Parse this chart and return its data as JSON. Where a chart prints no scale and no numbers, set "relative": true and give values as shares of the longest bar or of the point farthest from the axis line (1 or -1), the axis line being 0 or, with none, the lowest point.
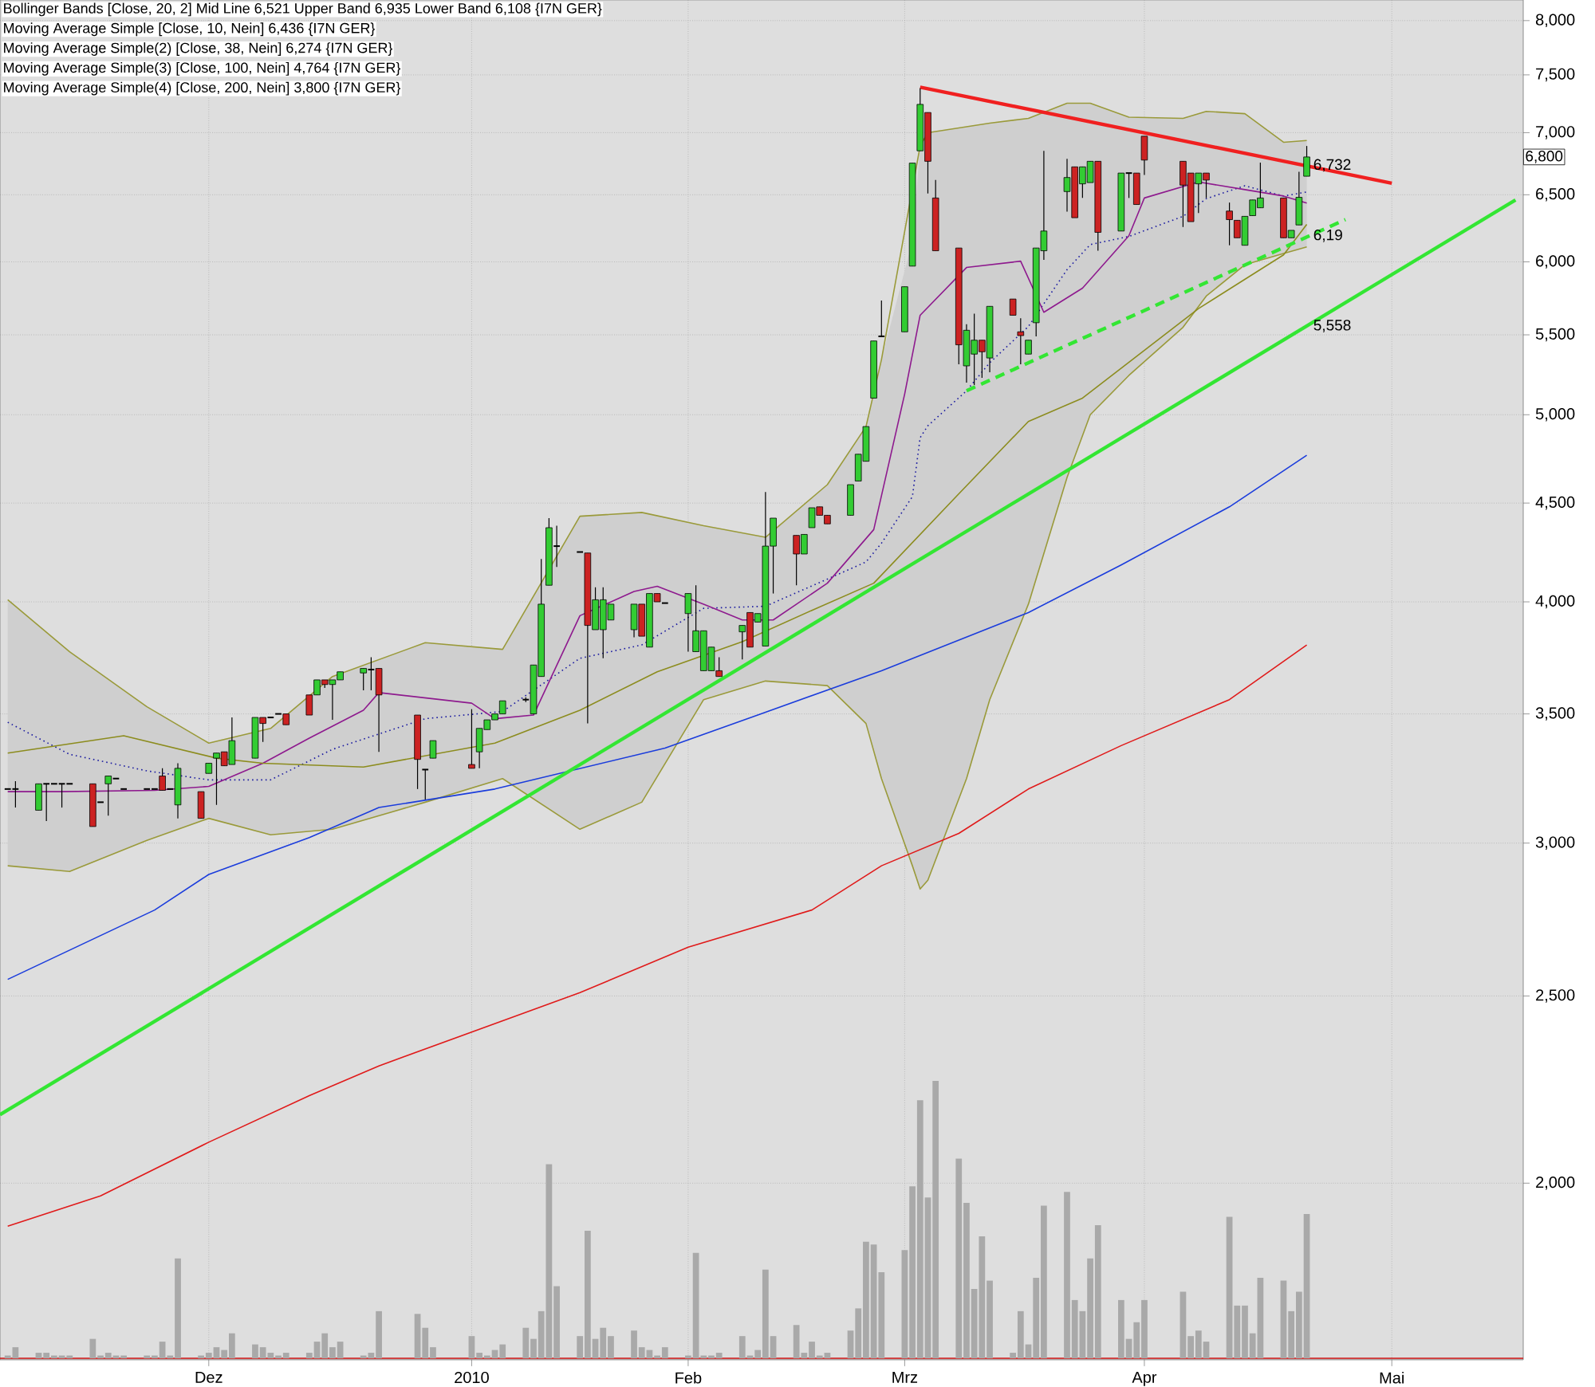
{
  "chart_data": [
    {
      "type": "candlestick",
      "x": [
        "2009-11-05",
        "2009-11-06",
        "2009-11-09",
        "2009-11-10",
        "2009-11-11",
        "2009-11-12",
        "2009-11-13",
        "2009-11-16",
        "2009-11-17",
        "2009-11-18",
        "2009-11-19",
        "2009-11-20",
        "2009-11-23",
        "2009-11-24",
        "2009-11-25",
        "2009-11-26",
        "2009-11-27",
        "2009-11-30",
        "2009-12-01",
        "2009-12-02",
        "2009-12-03",
        "2009-12-04",
        "2009-12-07",
        "2009-12-08",
        "2009-12-09",
        "2009-12-10",
        "2009-12-11",
        "2009-12-14",
        "2009-12-15",
        "2009-12-16",
        "2009-12-17",
        "2009-12-18",
        "2009-12-21",
        "2009-12-22",
        "2009-12-23",
        "2009-12-28",
        "2009-12-29",
        "2009-12-30",
        "2010-01-04",
        "2010-01-05",
        "2010-01-06",
        "2010-01-07",
        "2010-01-08",
        "2010-01-11",
        "2010-01-12",
        "2010-01-13",
        "2010-01-14",
        "2010-01-15",
        "2010-01-18",
        "2010-01-19",
        "2010-01-20",
        "2010-01-21",
        "2010-01-22",
        "2010-01-25",
        "2010-01-26",
        "2010-01-27",
        "2010-01-28",
        "2010-01-29",
        "2010-02-01",
        "2010-02-02",
        "2010-02-03",
        "2010-02-04",
        "2010-02-05",
        "2010-02-08",
        "2010-02-09",
        "2010-02-10",
        "2010-02-11",
        "2010-02-12",
        "2010-02-15",
        "2010-02-16",
        "2010-02-17",
        "2010-02-18",
        "2010-02-19",
        "2010-02-22",
        "2010-02-23",
        "2010-02-24",
        "2010-02-25",
        "2010-02-26",
        "2010-03-01",
        "2010-03-02",
        "2010-03-03",
        "2010-03-04",
        "2010-03-05",
        "2010-03-08",
        "2010-03-09",
        "2010-03-10",
        "2010-03-11",
        "2010-03-12",
        "2010-03-15",
        "2010-03-16",
        "2010-03-17",
        "2010-03-18",
        "2010-03-19",
        "2010-03-22",
        "2010-03-23",
        "2010-03-24",
        "2010-03-25",
        "2010-03-26",
        "2010-03-29",
        "2010-03-30",
        "2010-03-31",
        "2010-04-01",
        "2010-04-06",
        "2010-04-07",
        "2010-04-08",
        "2010-04-09",
        "2010-04-12",
        "2010-04-13",
        "2010-04-14",
        "2010-04-15",
        "2010-04-16",
        "2010-04-19",
        "2010-04-20",
        "2010-04-21",
        "2010-04-22"
      ],
      "ohlc": [
        [
          3200,
          3200,
          3200,
          3200
        ],
        [
          3200,
          3230,
          3130,
          3200
        ],
        [
          3120,
          3220,
          3120,
          3220
        ],
        [
          3220,
          3220,
          3080,
          3220
        ],
        [
          3220,
          3220,
          3220,
          3220
        ],
        [
          3220,
          3220,
          3130,
          3220
        ],
        [
          3220,
          3220,
          3220,
          3220
        ],
        [
          3220,
          3220,
          3060,
          3060
        ],
        [
          3150,
          3150,
          3150,
          3150
        ],
        [
          3220,
          3250,
          3100,
          3250
        ],
        [
          3240,
          3240,
          3240,
          3240
        ],
        [
          3200,
          3200,
          3200,
          3200
        ],
        [
          3200,
          3200,
          3200,
          3200
        ],
        [
          3200,
          3200,
          3200,
          3200
        ],
        [
          3250,
          3280,
          3195,
          3195
        ],
        [
          3200,
          3200,
          3200,
          3200
        ],
        [
          3140,
          3300,
          3090,
          3280
        ],
        [
          3190,
          3190,
          3090,
          3090
        ],
        [
          3260,
          3300,
          3260,
          3300
        ],
        [
          3320,
          3340,
          3140,
          3340
        ],
        [
          3345,
          3345,
          3290,
          3290
        ],
        [
          3295,
          3485,
          3295,
          3390
        ],
        [
          3320,
          3485,
          3320,
          3485
        ],
        [
          3485,
          3485,
          3385,
          3460
        ],
        [
          3485,
          3485,
          3485,
          3485
        ],
        [
          3500,
          3500,
          3500,
          3500
        ],
        [
          3500,
          3500,
          3455,
          3455
        ],
        [
          3580,
          3580,
          3495,
          3495
        ],
        [
          3580,
          3645,
          3580,
          3645
        ],
        [
          3645,
          3645,
          3610,
          3625
        ],
        [
          3625,
          3645,
          3475,
          3645
        ],
        [
          3645,
          3680,
          3645,
          3680
        ],
        [
          3675,
          3695,
          3600,
          3695
        ],
        [
          3690,
          3745,
          3600,
          3690
        ],
        [
          3695,
          3695,
          3345,
          3580
        ],
        [
          3495,
          3495,
          3200,
          3315
        ],
        [
          3275,
          3275,
          3160,
          3275
        ],
        [
          3320,
          3390,
          3320,
          3390
        ],
        [
          3295,
          3520,
          3280,
          3280
        ],
        [
          3345,
          3440,
          3280,
          3440
        ],
        [
          3435,
          3475,
          3435,
          3475
        ],
        [
          3475,
          3500,
          3475,
          3500
        ],
        [
          3500,
          3555,
          3500,
          3555
        ],
        [
          3560,
          3570,
          3550,
          3560
        ],
        [
          3500,
          3710,
          3500,
          3710
        ],
        [
          3660,
          4210,
          3660,
          3990
        ],
        [
          4080,
          4420,
          4080,
          4370
        ],
        [
          4275,
          4380,
          4170,
          4275
        ],
        [
          4245,
          4245,
          4245,
          4245
        ],
        [
          4240,
          4240,
          3460,
          3890
        ],
        [
          3870,
          4070,
          3870,
          4010
        ],
        [
          3870,
          4070,
          3740,
          4010
        ],
        [
          3915,
          3990,
          3915,
          3990
        ],
        [
          3870,
          3990,
          3835,
          3990
        ],
        [
          3990,
          3990,
          3840,
          3840
        ],
        [
          3790,
          4040,
          3790,
          4040
        ],
        [
          4040,
          4040,
          4000,
          4000
        ],
        [
          3995,
          3995,
          3995,
          3995
        ],
        [
          3945,
          4040,
          3770,
          4040
        ],
        [
          3770,
          4080,
          3770,
          3865
        ],
        [
          3685,
          3865,
          3685,
          3865
        ],
        [
          3685,
          3790,
          3685,
          3790
        ],
        [
          3685,
          3745,
          3660,
          3660
        ],
        [
          3860,
          3890,
          3735,
          3890
        ],
        [
          3950,
          3950,
          3790,
          3790
        ],
        [
          3905,
          3945,
          3905,
          3945
        ],
        [
          3795,
          4560,
          3795,
          4275
        ],
        [
          4275,
          4420,
          4040,
          4420
        ],
        [
          4330,
          4330,
          4080,
          4235
        ],
        [
          4235,
          4335,
          4235,
          4335
        ],
        [
          4370,
          4475,
          4370,
          4475
        ],
        [
          4480,
          4480,
          4435,
          4435
        ],
        [
          4435,
          4435,
          4390,
          4390
        ],
        [
          4435,
          4600,
          4435,
          4600
        ],
        [
          4620,
          4770,
          4620,
          4770
        ],
        [
          4730,
          4930,
          4730,
          4930
        ],
        [
          5100,
          5460,
          5100,
          5460
        ],
        [
          5490,
          5730,
          5490,
          5490
        ],
        [
          5520,
          5825,
          5520,
          5825
        ],
        [
          5970,
          6750,
          5970,
          6750
        ],
        [
          6850,
          7380,
          6850,
          7240
        ],
        [
          7170,
          7170,
          6510,
          6765
        ],
        [
          6475,
          6615,
          6080,
          6080
        ],
        [
          6100,
          6100,
          5310,
          5435
        ],
        [
          5300,
          5570,
          5195,
          5530
        ],
        [
          5375,
          5640,
          5180,
          5465
        ],
        [
          5465,
          5465,
          5225,
          5390
        ],
        [
          5350,
          5690,
          5260,
          5690
        ],
        [
          5740,
          5740,
          5630,
          5630
        ],
        [
          5520,
          5610,
          5310,
          5495
        ],
        [
          5375,
          5465,
          5375,
          5465
        ],
        [
          5580,
          6100,
          5490,
          6100
        ],
        [
          6080,
          6850,
          6015,
          6225
        ],
        [
          6525,
          6785,
          6370,
          6635
        ],
        [
          6720,
          6720,
          6325,
          6325
        ],
        [
          6585,
          6720,
          6475,
          6720
        ],
        [
          6595,
          6765,
          6595,
          6765
        ],
        [
          6765,
          6765,
          6080,
          6215
        ],
        [
          6225,
          6670,
          6225,
          6670
        ],
        [
          6670,
          6670,
          6475,
          6670
        ],
        [
          6670,
          6670,
          6425,
          6425
        ],
        [
          6970,
          6970,
          6655,
          6775
        ],
        [
          6765,
          6765,
          6255,
          6575
        ],
        [
          6670,
          6670,
          6295,
          6295
        ],
        [
          6585,
          6670,
          6360,
          6670
        ],
        [
          6670,
          6670,
          6475,
          6615
        ],
        [
          6375,
          6440,
          6120,
          6310
        ],
        [
          6305,
          6305,
          6175,
          6175
        ],
        [
          6120,
          6335,
          6120,
          6335
        ],
        [
          6340,
          6460,
          6340,
          6460
        ],
        [
          6400,
          6755,
          6400,
          6475
        ],
        [
          6475,
          6475,
          6175,
          6175
        ],
        [
          6175,
          6230,
          6175,
          6230
        ],
        [
          6270,
          6680,
          6270,
          6480
        ],
        [
          6645,
          6890,
          6645,
          6800
        ]
      ],
      "series": [
        {
          "type": "line",
          "x": [
            "2009-11-05",
            "2009-11-13",
            "2009-11-23",
            "2009-12-01",
            "2009-12-09",
            "2009-12-17",
            "2009-12-29",
            "2010-01-08",
            "2010-01-18",
            "2010-01-26",
            "2010-02-03",
            "2010-02-11",
            "2010-02-19",
            "2010-02-24",
            "2010-02-26",
            "2010-03-02",
            "2010-03-03",
            "2010-03-04",
            "2010-03-09",
            "2010-03-12",
            "2010-03-17",
            "2010-03-22",
            "2010-03-25",
            "2010-03-30",
            "2010-04-06",
            "2010-04-09",
            "2010-04-14",
            "2010-04-19",
            "2010-04-22"
          ],
          "values": [
            3465,
            3335,
            3270,
            3235,
            3235,
            3355,
            3480,
            3510,
            3740,
            3800,
            3970,
            3980,
            4110,
            4195,
            4290,
            4535,
            4865,
            4935,
            5145,
            5320,
            5555,
            5945,
            6125,
            6185,
            6335,
            6470,
            6570,
            6490,
            6521
          ],
          "upper": [
            4010,
            3770,
            3530,
            3380,
            3440,
            3660,
            3810,
            3780,
            4430,
            4450,
            4380,
            4320,
            4600,
            4930,
            5340,
            6150,
            6890,
            7000,
            7050,
            7080,
            7120,
            7250,
            7250,
            7130,
            7120,
            7180,
            7160,
            6920,
            6935
          ],
          "lower": [
            2920,
            2900,
            3010,
            3090,
            3030,
            3050,
            3150,
            3240,
            3050,
            3150,
            3560,
            3640,
            3620,
            3460,
            3240,
            2920,
            2840,
            2870,
            3240,
            3560,
            3990,
            4640,
            5000,
            5240,
            5550,
            5760,
            5980,
            6060,
            6108
          ],
          "color": "#1a1aa0",
          "line_style": "dotted"
        },
        {
          "type": "line",
          "x": [
            "2009-11-05",
            "2009-11-13",
            "2009-11-23",
            "2009-12-01",
            "2009-12-09",
            "2009-12-17",
            "2009-12-29",
            "2010-01-08",
            "2010-01-18",
            "2010-01-26",
            "2010-02-03",
            "2010-02-11",
            "2010-02-19",
            "2010-02-24",
            "2010-02-26",
            "2010-03-02",
            "2010-03-03",
            "2010-03-04",
            "2010-03-09",
            "2010-03-12",
            "2010-03-17",
            "2010-03-22",
            "2010-03-25",
            "2010-03-30",
            "2010-04-06",
            "2010-04-09",
            "2010-04-14",
            "2010-04-19",
            "2010-04-22"
          ],
          "values": [
            4010,
            3770,
            3530,
            3380,
            3440,
            3660,
            3810,
            3780,
            4430,
            4450,
            4380,
            4320,
            4600,
            4930,
            5340,
            null,
            6890,
            7000,
            7050,
            7080,
            7120,
            7250,
            7250,
            7130,
            7120,
            7180,
            7160,
            6920,
            6935
          ],
          "color": "#9a9a3a"
        },
        {
          "type": "line",
          "x": [
            "2009-11-05",
            "2009-11-13",
            "2009-11-23",
            "2009-12-01",
            "2009-12-09",
            "2009-12-17",
            "2009-12-29",
            "2010-01-08",
            "2010-01-18",
            "2010-01-26",
            "2010-02-03",
            "2010-02-11",
            "2010-02-19",
            "2010-02-24",
            "2010-02-26",
            "2010-03-02",
            "2010-03-03",
            "2010-03-04",
            "2010-03-09",
            "2010-03-12",
            "2010-03-17",
            "2010-03-22",
            "2010-03-25",
            "2010-03-30",
            "2010-04-06",
            "2010-04-09",
            "2010-04-14",
            "2010-04-19",
            "2010-04-22"
          ],
          "values": [
            2920,
            2900,
            3010,
            3090,
            3030,
            3050,
            3150,
            3240,
            3050,
            3150,
            3560,
            3640,
            3620,
            3460,
            3240,
            2920,
            2840,
            2870,
            3240,
            3560,
            3990,
            4640,
            5000,
            5240,
            5550,
            5760,
            5980,
            6060,
            6108
          ],
          "color": "#9a9a3a"
        },
        {
          "type": "line",
          "x": [
            "2009-11-05",
            "2009-11-12",
            "2009-11-24",
            "2009-12-01",
            "2009-12-08",
            "2009-12-14",
            "2009-12-21",
            "2009-12-23",
            "2010-01-04",
            "2010-01-07",
            "2010-01-12",
            "2010-01-18",
            "2010-01-25",
            "2010-01-28",
            "2010-02-03",
            "2010-02-08",
            "2010-02-12",
            "2010-02-19",
            "2010-02-25",
            "2010-03-01",
            "2010-03-03",
            "2010-03-09",
            "2010-03-16",
            "2010-03-19",
            "2010-03-24",
            "2010-03-30",
            "2010-04-01",
            "2010-04-08",
            "2010-04-14",
            "2010-04-19",
            "2010-04-22"
          ],
          "values": [
            3190,
            3190,
            3195,
            3210,
            3300,
            3400,
            3515,
            3590,
            3545,
            3480,
            3495,
            3935,
            4050,
            4075,
            3990,
            3915,
            3915,
            4090,
            4360,
            5125,
            5630,
            5960,
            6005,
            5650,
            5815,
            6190,
            6475,
            6600,
            6540,
            6490,
            6436
          ],
          "color": "#8e1a8e"
        },
        {
          "type": "line",
          "x": [
            "2009-11-05",
            "2009-11-20",
            "2009-12-02",
            "2009-12-08",
            "2009-12-21",
            "2010-01-07",
            "2010-01-18",
            "2010-01-28",
            "2010-02-08",
            "2010-02-17",
            "2010-02-25",
            "2010-03-08",
            "2010-03-17",
            "2010-03-24",
            "2010-04-08",
            "2010-04-19",
            "2010-04-22"
          ],
          "values": [
            3340,
            3410,
            3320,
            3300,
            3285,
            3380,
            3515,
            3680,
            3815,
            3960,
            4090,
            4550,
            4960,
            5100,
            5675,
            6050,
            6274
          ],
          "color": "#8c8c1e"
        },
        {
          "type": "line",
          "x": [
            "2009-11-05",
            "2009-11-24",
            "2009-12-01",
            "2009-12-14",
            "2009-12-23",
            "2010-01-07",
            "2010-01-29",
            "2010-02-10",
            "2010-02-26",
            "2010-03-17",
            "2010-03-29",
            "2010-04-12",
            "2010-04-22"
          ],
          "values": [
            2550,
            2770,
            2890,
            3020,
            3130,
            3200,
            3360,
            3495,
            3685,
            3950,
            4180,
            4480,
            4764
          ],
          "color": "#1a3cdc"
        },
        {
          "type": "line",
          "x": [
            "2009-11-05",
            "2009-11-17",
            "2009-12-01",
            "2009-12-14",
            "2009-12-23",
            "2010-01-18",
            "2010-02-01",
            "2010-02-17",
            "2010-02-26",
            "2010-03-08",
            "2010-03-17",
            "2010-03-29",
            "2010-04-12",
            "2010-04-22"
          ],
          "values": [
            1900,
            1970,
            2100,
            2220,
            2300,
            2510,
            2650,
            2770,
            2920,
            3035,
            3200,
            3370,
            3560,
            3800
          ],
          "color": "#e01a1a"
        },
        {
          "type": "line",
          "x": [
            "2010-03-03",
            "2010-05-03"
          ],
          "values": [
            7390,
            6590
          ],
          "color": "#f02020"
        },
        {
          "type": "line",
          "x": [
            "2009-11-04",
            "2010-05-19"
          ],
          "values": [
            2170,
            6460
          ],
          "color": "#33e633"
        },
        {
          "type": "line",
          "x": [
            "2010-03-09",
            "2010-04-27"
          ],
          "values": [
            5145,
            6310
          ],
          "color": "#33e633",
          "line_style": "dashed"
        }
      ],
      "xlim": [
        "2009-11-04",
        "2010-05-20"
      ],
      "xticks": [
        {
          "value": "2009-12-01",
          "label": "Dez"
        },
        {
          "value": "2010-01-04",
          "label": "2010"
        },
        {
          "value": "2010-02-01",
          "label": "Feb"
        },
        {
          "value": "2010-03-01",
          "label": "Mrz"
        },
        {
          "value": "2010-04-01",
          "label": "Apr"
        },
        {
          "value": "2010-05-03",
          "label": "Mai"
        }
      ],
      "log": "y",
      "ylim": [
        1620,
        8200
      ],
      "yticks": [
        {
          "value": 2000,
          "label": "2,000"
        },
        {
          "value": 2500,
          "label": "2,500"
        },
        {
          "value": 3000,
          "label": "3,000"
        },
        {
          "value": 3500,
          "label": "3,500"
        },
        {
          "value": 4000,
          "label": "4,000"
        },
        {
          "value": 4500,
          "label": "4,500"
        },
        {
          "value": 5000,
          "label": "5,000"
        },
        {
          "value": 5500,
          "label": "5,500"
        },
        {
          "value": 6000,
          "label": "6,000"
        },
        {
          "value": 6500,
          "label": "6,500"
        },
        {
          "value": 7000,
          "label": "7,000"
        },
        {
          "value": 7500,
          "label": "7,500"
        },
        {
          "value": 8000,
          "label": "8,000"
        }
      ],
      "grid": true,
      "annotations": [
        "Bollinger Bands [Close, 20, 2] Mid Line 6,521 Upper Band 6,935 Lower Band 6,108 {I7N GER}",
        "Moving Average Simple [Close, 10, Nein] 6,436 {I7N GER}",
        "Moving Average Simple(2) [Close, 38, Nein] 6,274 {I7N GER}",
        "Moving Average Simple(3) [Close, 100, Nein] 4,764 {I7N GER}",
        "Moving Average Simple(4) [Close, 200, Nein] 3,800 {I7N GER}",
        {
          "text": "6,732",
          "x": "2010-04-22",
          "y": 6732
        },
        {
          "text": "6,19",
          "x": "2010-04-22",
          "y": 6190
        },
        {
          "text": "5,558",
          "x": "2010-04-22",
          "y": 5558
        },
        {
          "text": "6,800",
          "y": 6800
        }
      ]
    },
    {
      "type": "bar",
      "relative": true,
      "color": "#a9a9a9",
      "xlim": [
        "2009-11-04",
        "2010-05-20"
      ],
      "x": [
        "2009-11-05",
        "2009-11-06",
        "2009-11-09",
        "2009-11-10",
        "2009-11-11",
        "2009-11-12",
        "2009-11-13",
        "2009-11-16",
        "2009-11-17",
        "2009-11-18",
        "2009-11-19",
        "2009-11-20",
        "2009-11-23",
        "2009-11-24",
        "2009-11-25",
        "2009-11-26",
        "2009-11-27",
        "2009-11-30",
        "2009-12-01",
        "2009-12-02",
        "2009-12-03",
        "2009-12-04",
        "2009-12-07",
        "2009-12-08",
        "2009-12-09",
        "2009-12-10",
        "2009-12-11",
        "2009-12-14",
        "2009-12-15",
        "2009-12-16",
        "2009-12-17",
        "2009-12-18",
        "2009-12-21",
        "2009-12-22",
        "2009-12-23",
        "2009-12-28",
        "2009-12-29",
        "2009-12-30",
        "2010-01-04",
        "2010-01-05",
        "2010-01-06",
        "2010-01-07",
        "2010-01-08",
        "2010-01-11",
        "2010-01-12",
        "2010-01-13",
        "2010-01-14",
        "2010-01-15",
        "2010-01-18",
        "2010-01-19",
        "2010-01-20",
        "2010-01-21",
        "2010-01-22",
        "2010-01-25",
        "2010-01-26",
        "2010-01-27",
        "2010-01-28",
        "2010-01-29",
        "2010-02-01",
        "2010-02-02",
        "2010-02-03",
        "2010-02-04",
        "2010-02-05",
        "2010-02-08",
        "2010-02-09",
        "2010-02-10",
        "2010-02-11",
        "2010-02-12",
        "2010-02-15",
        "2010-02-16",
        "2010-02-17",
        "2010-02-18",
        "2010-02-19",
        "2010-02-22",
        "2010-02-23",
        "2010-02-24",
        "2010-02-25",
        "2010-02-26",
        "2010-03-01",
        "2010-03-02",
        "2010-03-03",
        "2010-03-04",
        "2010-03-05",
        "2010-03-08",
        "2010-03-09",
        "2010-03-10",
        "2010-03-11",
        "2010-03-12",
        "2010-03-15",
        "2010-03-16",
        "2010-03-17",
        "2010-03-18",
        "2010-03-19",
        "2010-03-22",
        "2010-03-23",
        "2010-03-24",
        "2010-03-25",
        "2010-03-26",
        "2010-03-29",
        "2010-03-30",
        "2010-03-31",
        "2010-04-01",
        "2010-04-06",
        "2010-04-07",
        "2010-04-08",
        "2010-04-09",
        "2010-04-12",
        "2010-04-13",
        "2010-04-14",
        "2010-04-15",
        "2010-04-16",
        "2010-04-19",
        "2010-04-20",
        "2010-04-21",
        "2010-04-22"
      ],
      "values": [
        0.01,
        0.04,
        0.02,
        0.02,
        0.01,
        0.01,
        0.01,
        0.07,
        0.01,
        0.02,
        0.01,
        0.01,
        0.01,
        0.01,
        0.06,
        0.01,
        0.36,
        0.01,
        0.02,
        0.04,
        0.03,
        0.09,
        0.05,
        0.04,
        0.02,
        0.01,
        0.02,
        0.02,
        0.06,
        0.09,
        0.04,
        0.06,
        0.01,
        0.02,
        0.17,
        0.16,
        0.11,
        0.04,
        0.08,
        0.02,
        0.01,
        0.03,
        0.05,
        0.11,
        0.07,
        0.17,
        0.7,
        0.26,
        0.08,
        0.46,
        0.07,
        0.11,
        0.08,
        0.1,
        0.04,
        0.03,
        0.01,
        0.04,
        0.01,
        0.38,
        0.01,
        0.01,
        0.02,
        0.08,
        0.01,
        0.03,
        0.32,
        0.08,
        0.12,
        0.02,
        0.06,
        0.01,
        0.02,
        0.1,
        0.18,
        0.42,
        0.41,
        0.31,
        0.39,
        0.62,
        0.93,
        0.58,
        1,
        0.72,
        0.56,
        0.25,
        0.44,
        0.28,
        0.02,
        0.17,
        0.05,
        0.29,
        0.55,
        0.6,
        0.21,
        0.17,
        0.36,
        0.48,
        0.21,
        0.07,
        0.13,
        0.21,
        0.24,
        0.08,
        0.1,
        0.06,
        0.51,
        0.19,
        0.19,
        0.09,
        0.29,
        0.28,
        0.17,
        0.24,
        0.52
      ]
    }
  ]
}
